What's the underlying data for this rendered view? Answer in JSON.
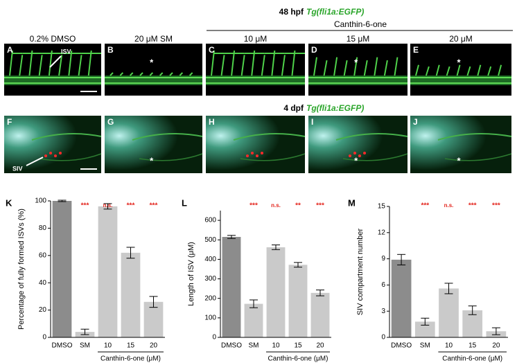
{
  "header": {
    "stage": "48 hpf",
    "line": "Tg(fli1a:EGFP)"
  },
  "group": "Canthin-6-one",
  "columns": [
    "0.2% DMSO",
    "20 μM SM",
    "10 μM",
    "15 μM",
    "20 μM"
  ],
  "row2_header": {
    "stage": "4 dpf",
    "line": "Tg(fli1a:EGFP)"
  },
  "panels": [
    {
      "letter": "A",
      "note": "ISV"
    },
    {
      "letter": "B",
      "note": "*"
    },
    {
      "letter": "C",
      "note": null
    },
    {
      "letter": "D",
      "note": "*"
    },
    {
      "letter": "E",
      "note": "*"
    },
    {
      "letter": "F",
      "note": "SIV"
    },
    {
      "letter": "G",
      "note": "*"
    },
    {
      "letter": "H",
      "note": null
    },
    {
      "letter": "I",
      "note": "*"
    },
    {
      "letter": "J",
      "note": "*"
    }
  ],
  "chart_data": [
    {
      "type": "bar",
      "panel": "K",
      "ylabel": "Percentage of fully formed ISVs (%)",
      "categories": [
        "DMSO",
        "SM",
        "10",
        "15",
        "20"
      ],
      "group_label": "Canthin-6-one (μM)",
      "values": [
        100,
        4,
        96,
        62,
        26
      ],
      "errors": [
        0.5,
        2,
        2,
        4,
        4
      ],
      "colors": [
        "#8c8c8c",
        "#cacaca",
        "#cacaca",
        "#cacaca",
        "#cacaca"
      ],
      "significance": [
        null,
        "***",
        "n.s.",
        "***",
        "***"
      ],
      "significance_colors": [
        null,
        "#e3241c",
        "#e3241c",
        "#e3241c",
        "#e3241c"
      ],
      "ylim": [
        0,
        100
      ],
      "yticks": [
        0,
        20,
        40,
        60,
        80,
        100
      ]
    },
    {
      "type": "bar",
      "panel": "L",
      "ylabel": "Length of ISV (μM)",
      "categories": [
        "DMSO",
        "SM",
        "10",
        "15",
        "20"
      ],
      "group_label": "Canthin-6-one (μM)",
      "values": [
        515,
        172,
        462,
        372,
        228
      ],
      "errors": [
        8,
        20,
        12,
        12,
        15
      ],
      "colors": [
        "#8c8c8c",
        "#cacaca",
        "#cacaca",
        "#cacaca",
        "#cacaca"
      ],
      "significance": [
        null,
        "***",
        "n.s.",
        "**",
        "***"
      ],
      "significance_colors": [
        null,
        "#e3241c",
        "#e3241c",
        "#e3241c",
        "#e3241c"
      ],
      "ylim": [
        0,
        650
      ],
      "yticks": [
        0,
        100,
        200,
        300,
        400,
        500,
        600
      ]
    },
    {
      "type": "bar",
      "panel": "M",
      "ylabel": "SIV compartment number",
      "categories": [
        "DMSO",
        "SM",
        "10",
        "15",
        "20"
      ],
      "group_label": "Canthin-6-one (μM)",
      "values": [
        8.9,
        1.8,
        5.6,
        3.1,
        0.7
      ],
      "errors": [
        0.6,
        0.4,
        0.6,
        0.5,
        0.4
      ],
      "colors": [
        "#8c8c8c",
        "#cacaca",
        "#cacaca",
        "#cacaca",
        "#cacaca"
      ],
      "significance": [
        null,
        "***",
        "n.s.",
        "***",
        "***"
      ],
      "significance_colors": [
        null,
        "#e3241c",
        "#e3241c",
        "#e3241c",
        "#e3241c"
      ],
      "ylim": [
        0,
        15
      ],
      "yticks": [
        0,
        3,
        6,
        9,
        12,
        15
      ]
    }
  ]
}
